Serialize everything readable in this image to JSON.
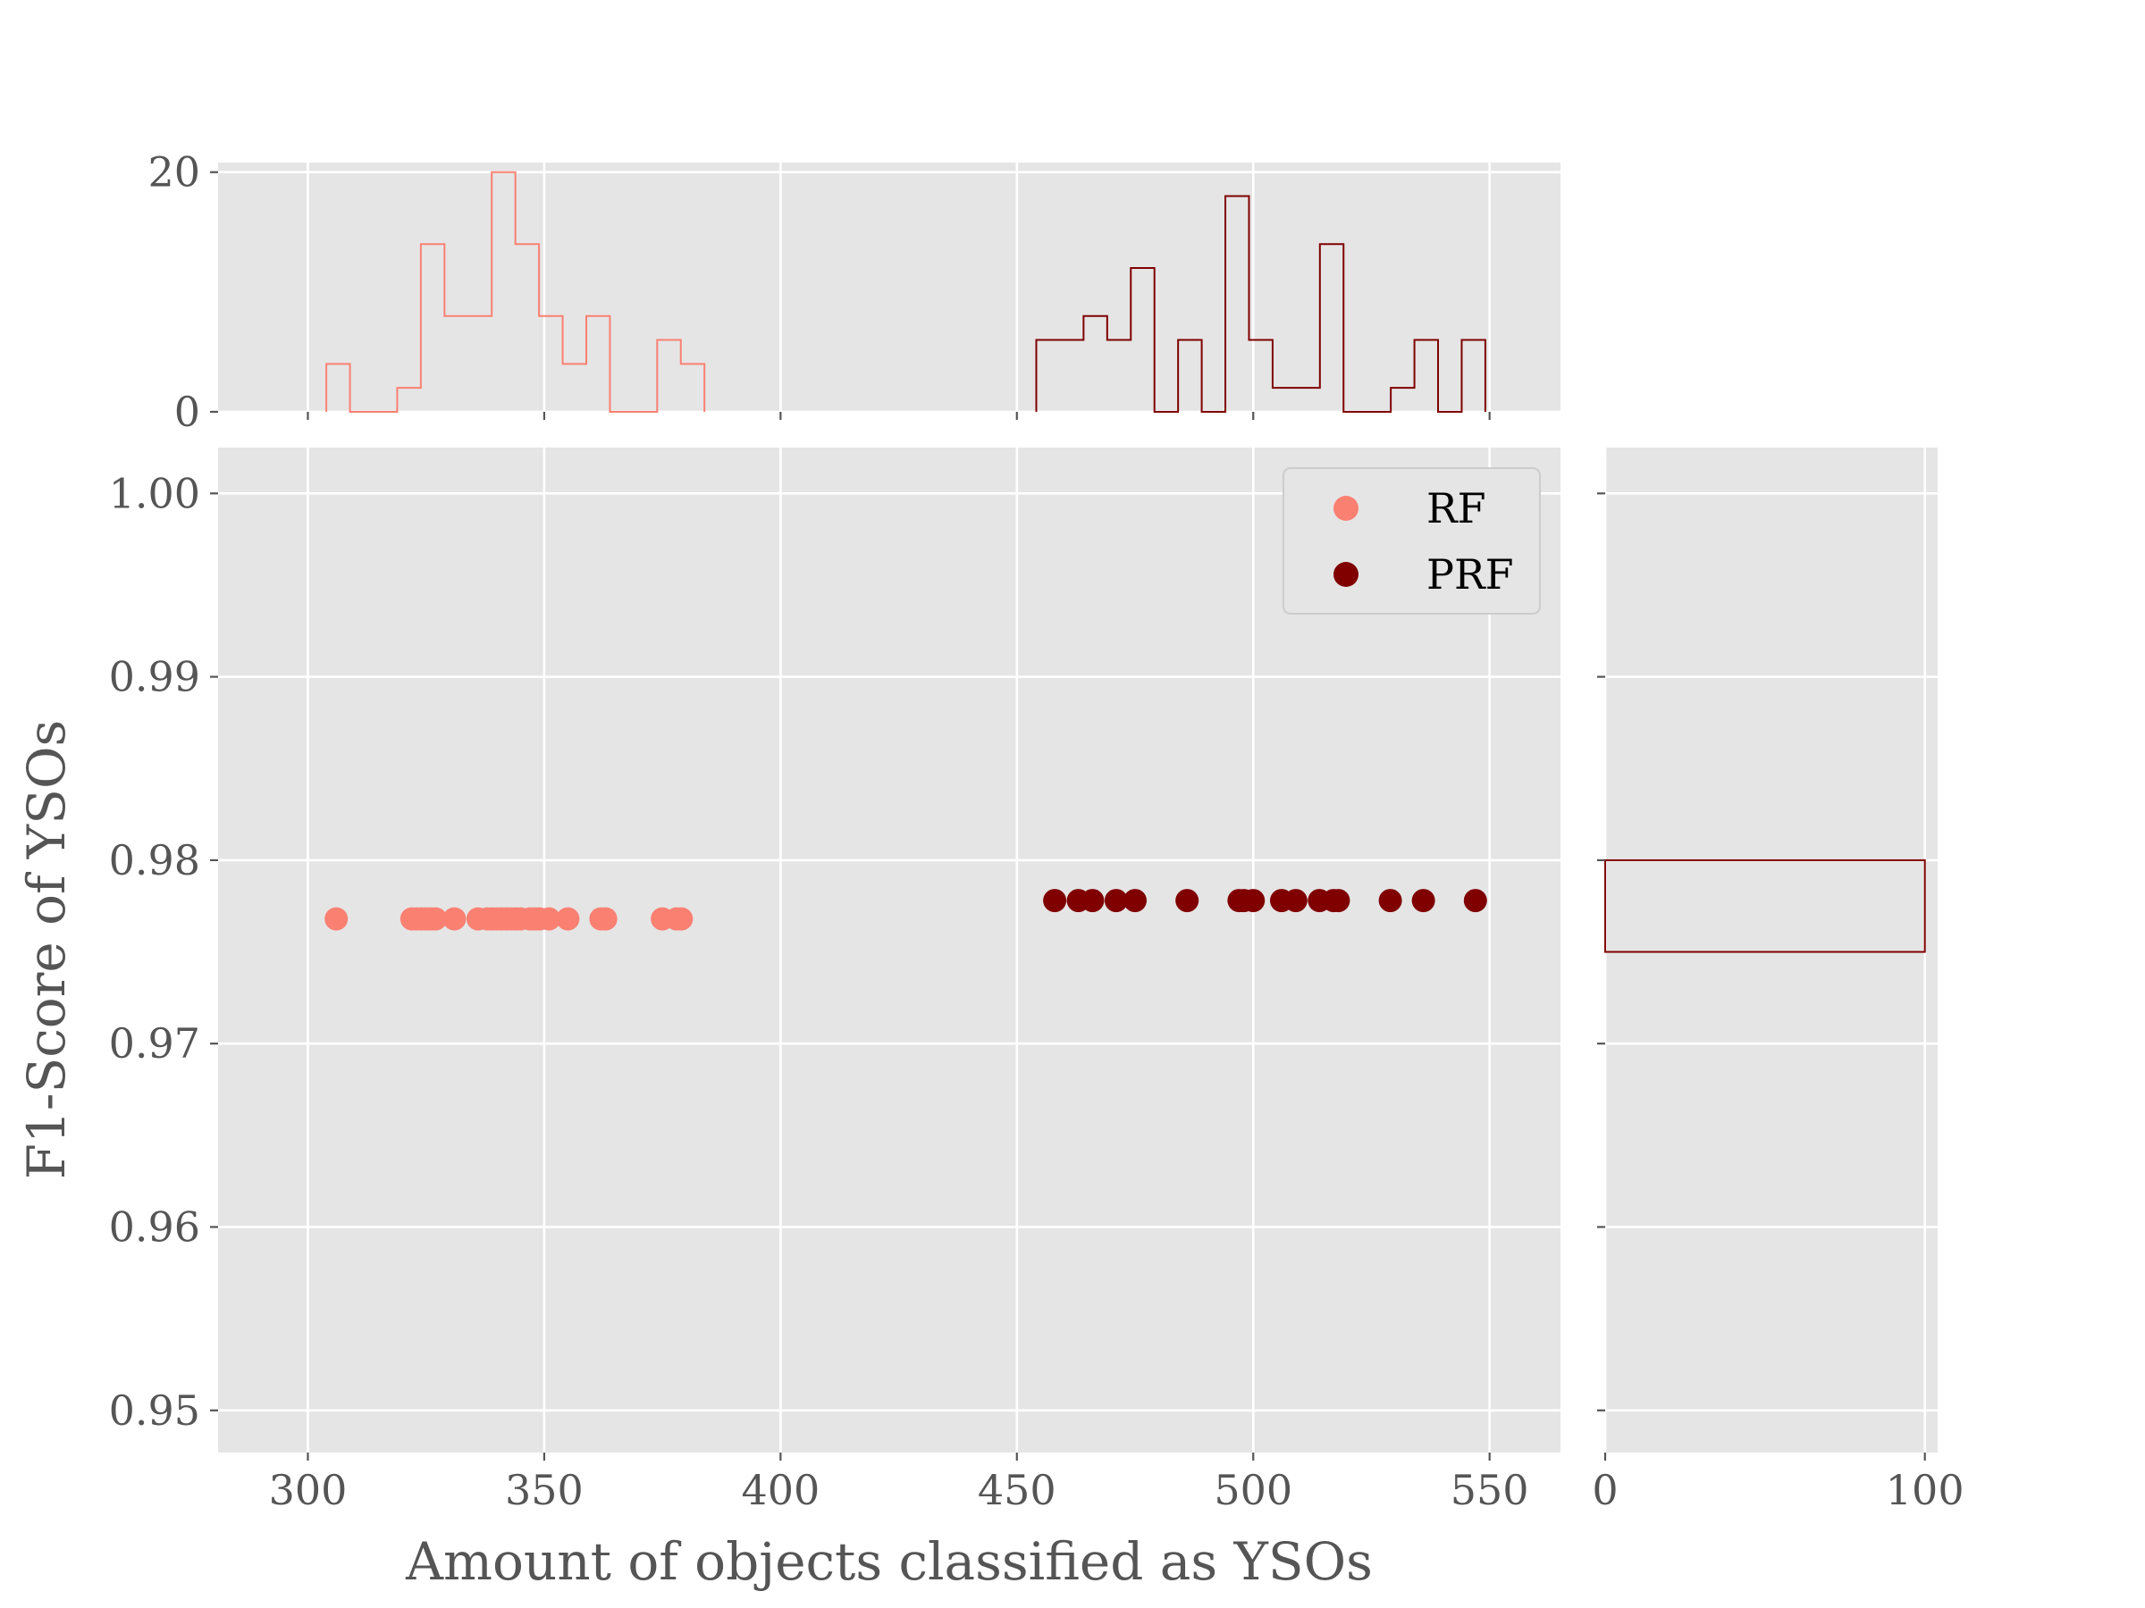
{
  "chart_data": {
    "type": "scatter",
    "xlabel": "Amount of objects classified as YSOs",
    "ylabel": "F1-Score of YSOs",
    "xlim": [
      281,
      565
    ],
    "ylim": [
      0.9477,
      1.0025
    ],
    "xticks": [
      300,
      350,
      400,
      450,
      500,
      550
    ],
    "yticks": [
      0.95,
      0.96,
      0.97,
      0.98,
      0.99,
      1.0
    ],
    "ytick_labels": [
      "0.95",
      "0.96",
      "0.97",
      "0.98",
      "0.99",
      "1.00"
    ],
    "grid": true,
    "legend": {
      "position": "top-right",
      "entries": [
        "RF",
        "PRF"
      ]
    },
    "series": [
      {
        "name": "RF",
        "color": "#fa8072",
        "y": 0.9768,
        "x": [
          306,
          322,
          323,
          324,
          325,
          326,
          327,
          331,
          336,
          338,
          339,
          340,
          341,
          342,
          343,
          344,
          345,
          347,
          348,
          349,
          351,
          355,
          362,
          363,
          375,
          378,
          379
        ]
      },
      {
        "name": "PRF",
        "color": "#800000",
        "y": 0.9778,
        "x": [
          458,
          463,
          466,
          471,
          475,
          486,
          497,
          498,
          500,
          506,
          509,
          514,
          517,
          518,
          529,
          536,
          547
        ]
      }
    ],
    "top_histogram": {
      "ylim": [
        0,
        20.8
      ],
      "yticks": [
        0,
        20
      ],
      "series": [
        {
          "name": "RF",
          "color": "#fa8072",
          "edges": [
            303.9,
            308.9,
            313.9,
            318.9,
            323.9,
            328.9,
            333.9,
            338.9,
            343.9,
            348.9,
            353.9,
            358.9,
            363.9,
            368.9,
            373.9,
            378.9,
            383.9
          ],
          "counts": [
            4,
            0,
            0,
            2,
            14,
            8,
            8,
            20,
            14,
            8,
            4,
            8,
            0,
            0,
            6,
            4
          ]
        },
        {
          "name": "PRF",
          "color": "#800000",
          "edges": [
            454.1,
            459.1,
            464.1,
            469.1,
            474.1,
            479.1,
            484.1,
            489.1,
            494.1,
            499.1,
            504.1,
            509.1,
            514.1,
            519.1,
            524.1,
            529.1,
            534.1,
            539.1,
            544.1,
            549.1
          ],
          "counts": [
            6,
            6,
            8,
            6,
            12,
            0,
            6,
            0,
            18,
            6,
            2,
            2,
            14,
            0,
            0,
            2,
            6,
            0,
            6
          ]
        }
      ]
    },
    "right_histogram": {
      "xlim": [
        0,
        104
      ],
      "xticks": [
        0,
        100
      ],
      "bins": [
        {
          "y0": 0.975,
          "y1": 0.98,
          "count": 100,
          "color": "#800000"
        }
      ]
    }
  }
}
